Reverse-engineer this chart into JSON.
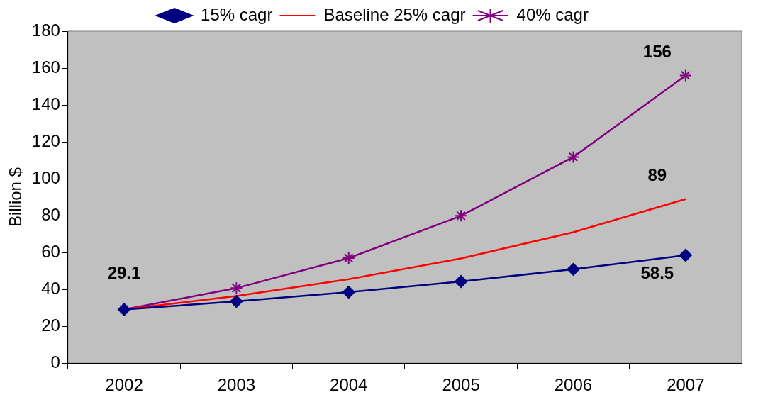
{
  "chart_data": {
    "type": "line",
    "ylabel": "Billion $",
    "categories": [
      "2002",
      "2003",
      "2004",
      "2005",
      "2006",
      "2007"
    ],
    "series": [
      {
        "name": "15% cagr",
        "color": "#000080",
        "marker": "diamond",
        "values": [
          29.1,
          33.5,
          38.5,
          44.3,
          50.9,
          58.5
        ],
        "value_labels": [
          "29.1",
          null,
          null,
          null,
          null,
          "58.5"
        ]
      },
      {
        "name": "Baseline 25% cagr",
        "color": "#ff0000",
        "marker": "none",
        "values": [
          29.1,
          36.4,
          45.5,
          56.8,
          71.0,
          89
        ],
        "value_labels": [
          null,
          null,
          null,
          null,
          null,
          "89"
        ]
      },
      {
        "name": "40% cagr",
        "color": "#800080",
        "marker": "cross",
        "values": [
          29.1,
          40.7,
          57.0,
          79.9,
          111.8,
          156
        ],
        "value_labels": [
          null,
          null,
          null,
          null,
          null,
          "156"
        ]
      }
    ],
    "ylim": [
      0,
      180
    ],
    "yticks": [
      0,
      20,
      40,
      60,
      80,
      100,
      120,
      140,
      160,
      180
    ],
    "grid": false,
    "legend": "top"
  }
}
